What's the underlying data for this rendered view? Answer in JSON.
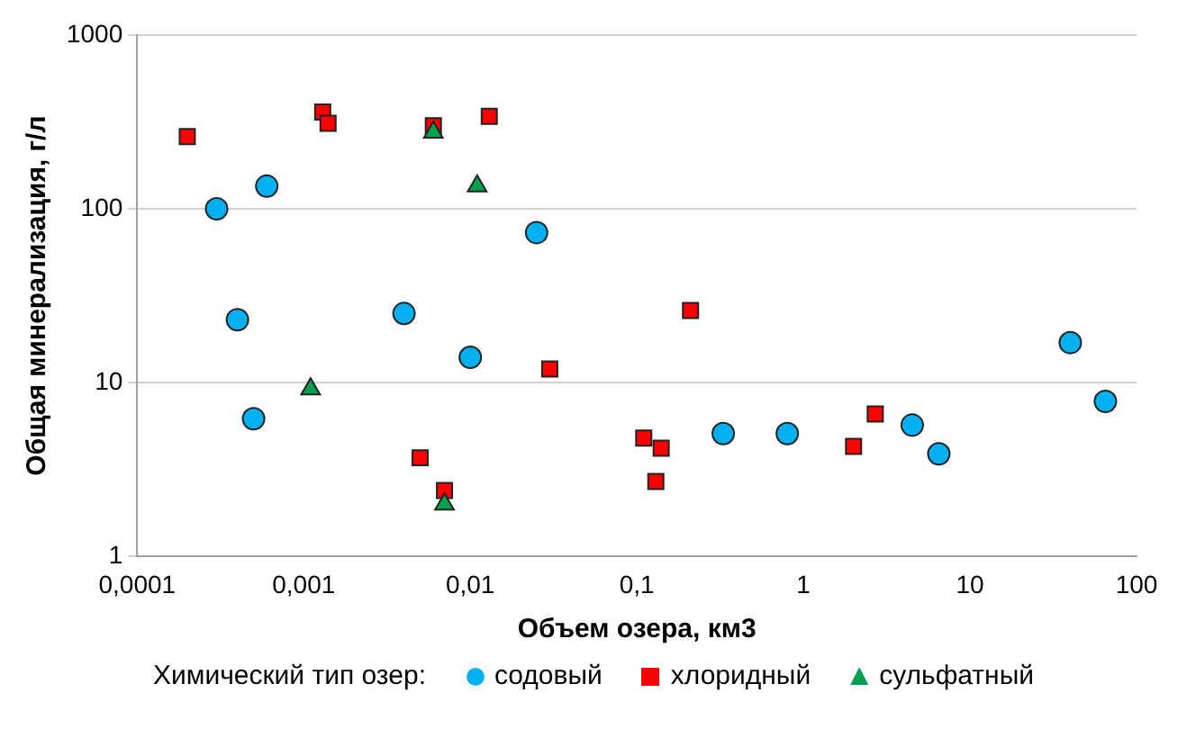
{
  "chart_data": {
    "type": "scatter",
    "xlabel": "Объем озера, км3",
    "ylabel": "Общая минерализация, г/л",
    "legend_title": "Химический тип озер:",
    "legend": "bottom",
    "log": "xy",
    "grid": "y",
    "xlim": [
      0.0001,
      100
    ],
    "ylim": [
      1,
      1000
    ],
    "xticks": [
      {
        "value": 0.0001,
        "label": "0,0001"
      },
      {
        "value": 0.001,
        "label": "0,001"
      },
      {
        "value": 0.01,
        "label": "0,01"
      },
      {
        "value": 0.1,
        "label": "0,1"
      },
      1,
      10,
      100
    ],
    "yticks": [
      1,
      10,
      100,
      1000
    ],
    "series": [
      {
        "name": "содовый",
        "color": "#00b0f0",
        "marker": "circle",
        "x": [
          0.0003,
          0.0004,
          0.0005,
          0.0006,
          0.004,
          0.01,
          0.025,
          0.33,
          0.8,
          4.5,
          6.5,
          40,
          65
        ],
        "values": [
          100,
          23,
          6.2,
          135,
          25,
          14,
          73,
          5.1,
          5.1,
          5.7,
          3.9,
          17,
          7.8
        ]
      },
      {
        "name": "хлоридный",
        "color": "#ff0000",
        "marker": "square",
        "x": [
          0.0002,
          0.0013,
          0.0014,
          0.006,
          0.013,
          0.005,
          0.007,
          0.03,
          0.11,
          0.13,
          0.14,
          0.21,
          2.0,
          2.7
        ],
        "values": [
          260,
          360,
          310,
          300,
          340,
          3.7,
          2.4,
          12,
          4.8,
          2.7,
          4.2,
          26,
          4.3,
          6.6
        ]
      },
      {
        "name": "сульфатный",
        "color": "#00a050",
        "marker": "triangle",
        "x": [
          0.0011,
          0.006,
          0.011,
          0.007
        ],
        "values": [
          9.2,
          275,
          135,
          2.0
        ]
      }
    ]
  }
}
